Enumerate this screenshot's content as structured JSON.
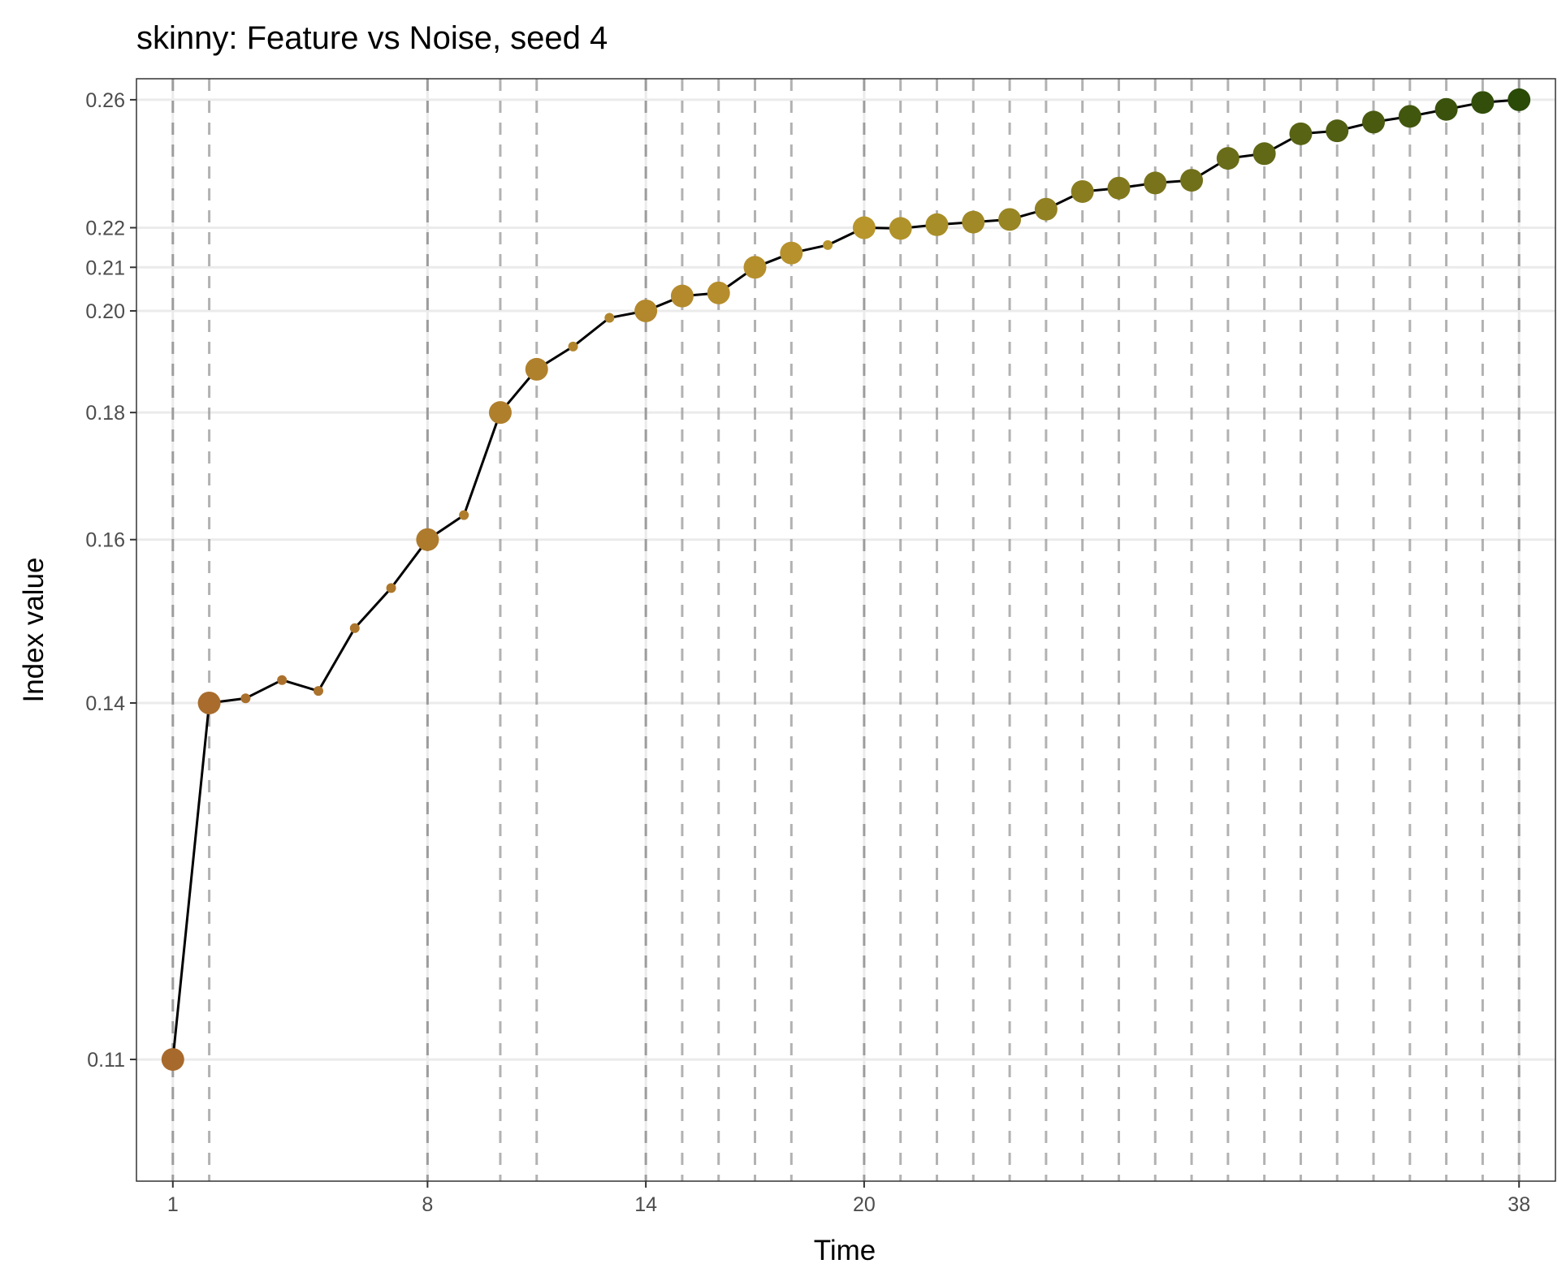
{
  "chart_data": {
    "type": "line",
    "title": "skinny: Feature vs Noise, seed 4",
    "xlabel": "Time",
    "ylabel": "Index value",
    "xlim": [
      0,
      39
    ],
    "ylim": [
      0.1025,
      0.268
    ],
    "y_scale": "reciprocal",
    "x_ticks": [
      1,
      8,
      14,
      20,
      38
    ],
    "y_ticks": [
      0.11,
      0.14,
      0.16,
      0.18,
      0.2,
      0.21,
      0.22,
      0.26
    ],
    "y_tick_labels": [
      "0.11",
      "0.14",
      "0.16",
      "0.18",
      "0.20",
      "0.21",
      "0.22",
      "0.26"
    ],
    "grid": true,
    "legend": "none",
    "vlines": [
      1,
      2,
      8,
      10,
      11,
      14,
      15,
      16,
      17,
      18,
      20,
      21,
      22,
      23,
      24,
      25,
      26,
      27,
      28,
      29,
      30,
      31,
      32,
      33,
      34,
      35,
      36,
      37,
      38
    ],
    "vline_dark": [
      1,
      8,
      14,
      20,
      38
    ],
    "colors": {
      "line": "#000000",
      "start_point": "#a86a2c",
      "mid_point": "#b8962c",
      "end_point": "#2a4a08",
      "vline": "#999999",
      "grid": "#ebebeb"
    },
    "series": [
      {
        "x": [
          1,
          2,
          3,
          4,
          5,
          6,
          7,
          8,
          9,
          10,
          11,
          12,
          13,
          14,
          15,
          16,
          17,
          18,
          19,
          20,
          21,
          22,
          23,
          24,
          25,
          26,
          27,
          28,
          29,
          30,
          31,
          32,
          33,
          34,
          35,
          36,
          37,
          38
        ],
        "values": [
          0.11,
          0.14,
          0.1405,
          0.1425,
          0.1413,
          0.1485,
          0.1535,
          0.16,
          0.1635,
          0.18,
          0.188,
          0.1925,
          0.1985,
          0.2,
          0.2033,
          0.204,
          0.21,
          0.2135,
          0.2155,
          0.22,
          0.2198,
          0.2208,
          0.2215,
          0.2222,
          0.225,
          0.23,
          0.231,
          0.2325,
          0.2333,
          0.24,
          0.2415,
          0.248,
          0.249,
          0.252,
          0.254,
          0.2565,
          0.259,
          0.26
        ],
        "point_size": [
          "large",
          "large",
          "small",
          "small",
          "small",
          "small",
          "small",
          "large",
          "small",
          "large",
          "large",
          "small",
          "small",
          "large",
          "large",
          "large",
          "large",
          "large",
          "small",
          "large",
          "large",
          "large",
          "large",
          "large",
          "large",
          "large",
          "large",
          "large",
          "large",
          "large",
          "large",
          "large",
          "large",
          "large",
          "large",
          "large",
          "large",
          "large"
        ]
      }
    ]
  }
}
